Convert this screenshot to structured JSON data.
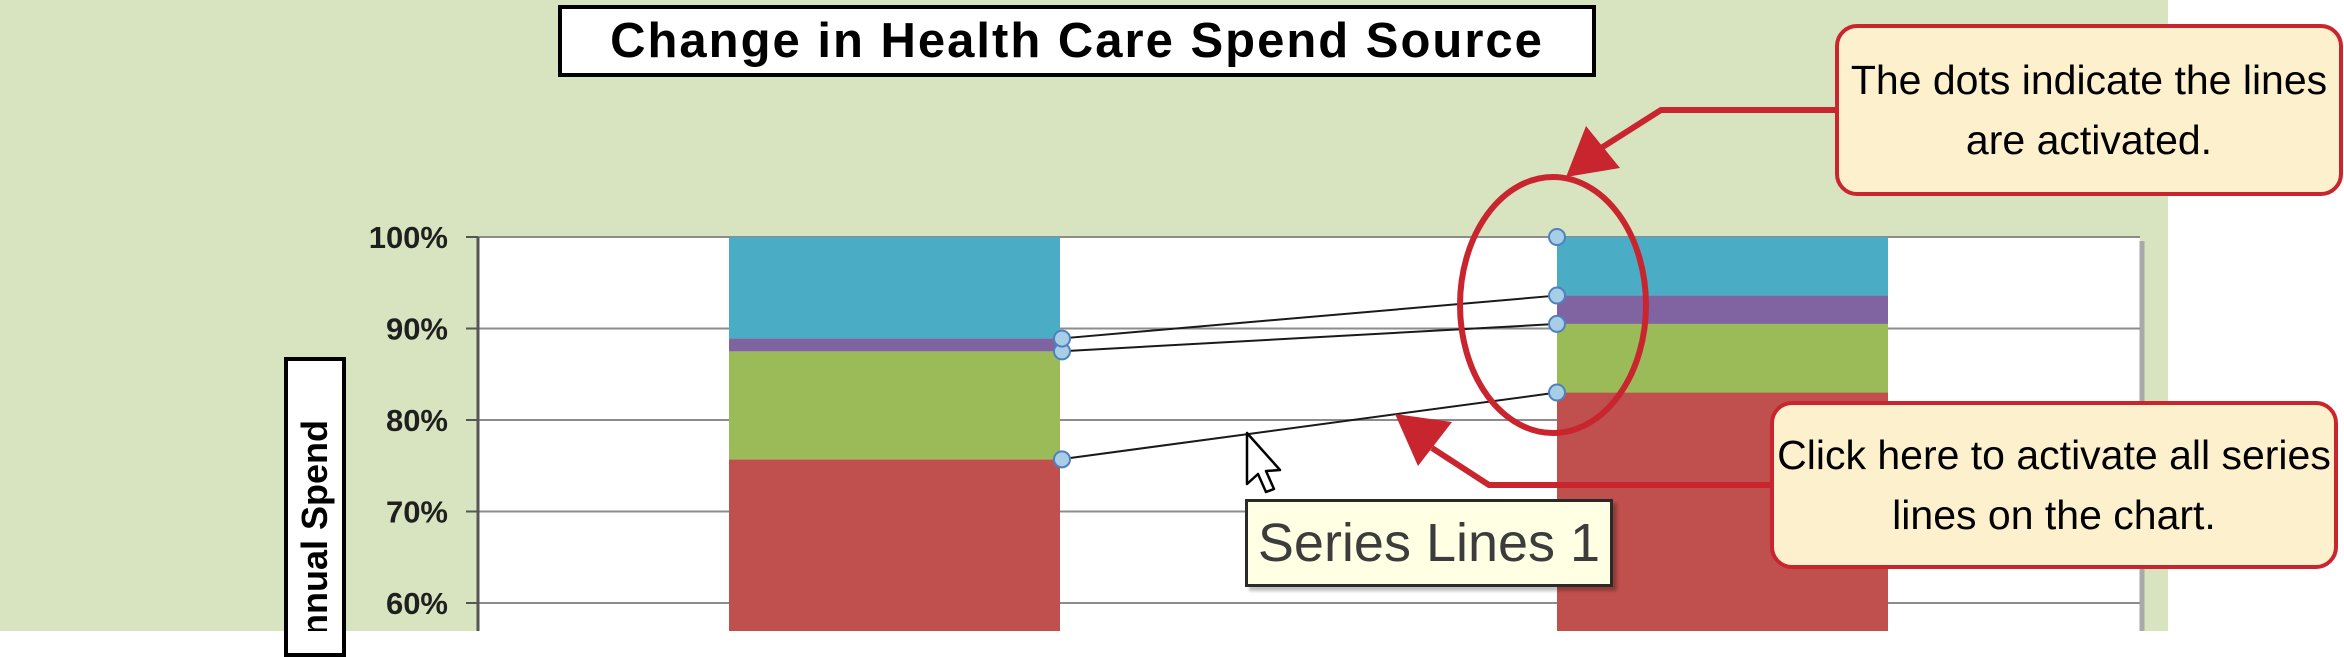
{
  "chart_data": {
    "type": "bar",
    "stacked": true,
    "percent_stacked": true,
    "title": "Change in Health Care Spend Source",
    "ylabel": "nnual Spend",
    "ylim": [
      0,
      100
    ],
    "yticks": [
      "100%",
      "90%",
      "80%",
      "70%",
      "60%"
    ],
    "yrange_visible": [
      58,
      100
    ],
    "categories": [
      "",
      ""
    ],
    "series": [
      {
        "values": [
          75.7,
          83.0
        ],
        "color": "#c0504d"
      },
      {
        "values": [
          11.8,
          7.5
        ],
        "color": "#9bbb59"
      },
      {
        "values": [
          1.4,
          3.1
        ],
        "color": "#8064a2"
      },
      {
        "values": [
          11.1,
          6.4
        ],
        "color": "#4bacc6"
      }
    ],
    "series_lines": {
      "connect_at": [
        75.7,
        87.5,
        88.9
      ],
      "end_at": [
        83.0,
        90.5,
        93.6,
        100.0
      ],
      "active": true
    },
    "grid": true,
    "legend": "none"
  },
  "annotations": {
    "callout_top": "The dots indicate the lines are activated.",
    "callout_bottom": "Click here to activate all series lines on the chart.",
    "tooltip": "Series Lines 1"
  },
  "colors": {
    "chart_background": "#d8e4bf",
    "callout_fill": "#fdf0cc",
    "callout_border": "#c9252f",
    "arrow": "#c9252f",
    "tooltip_fill": "#ffffe4"
  }
}
